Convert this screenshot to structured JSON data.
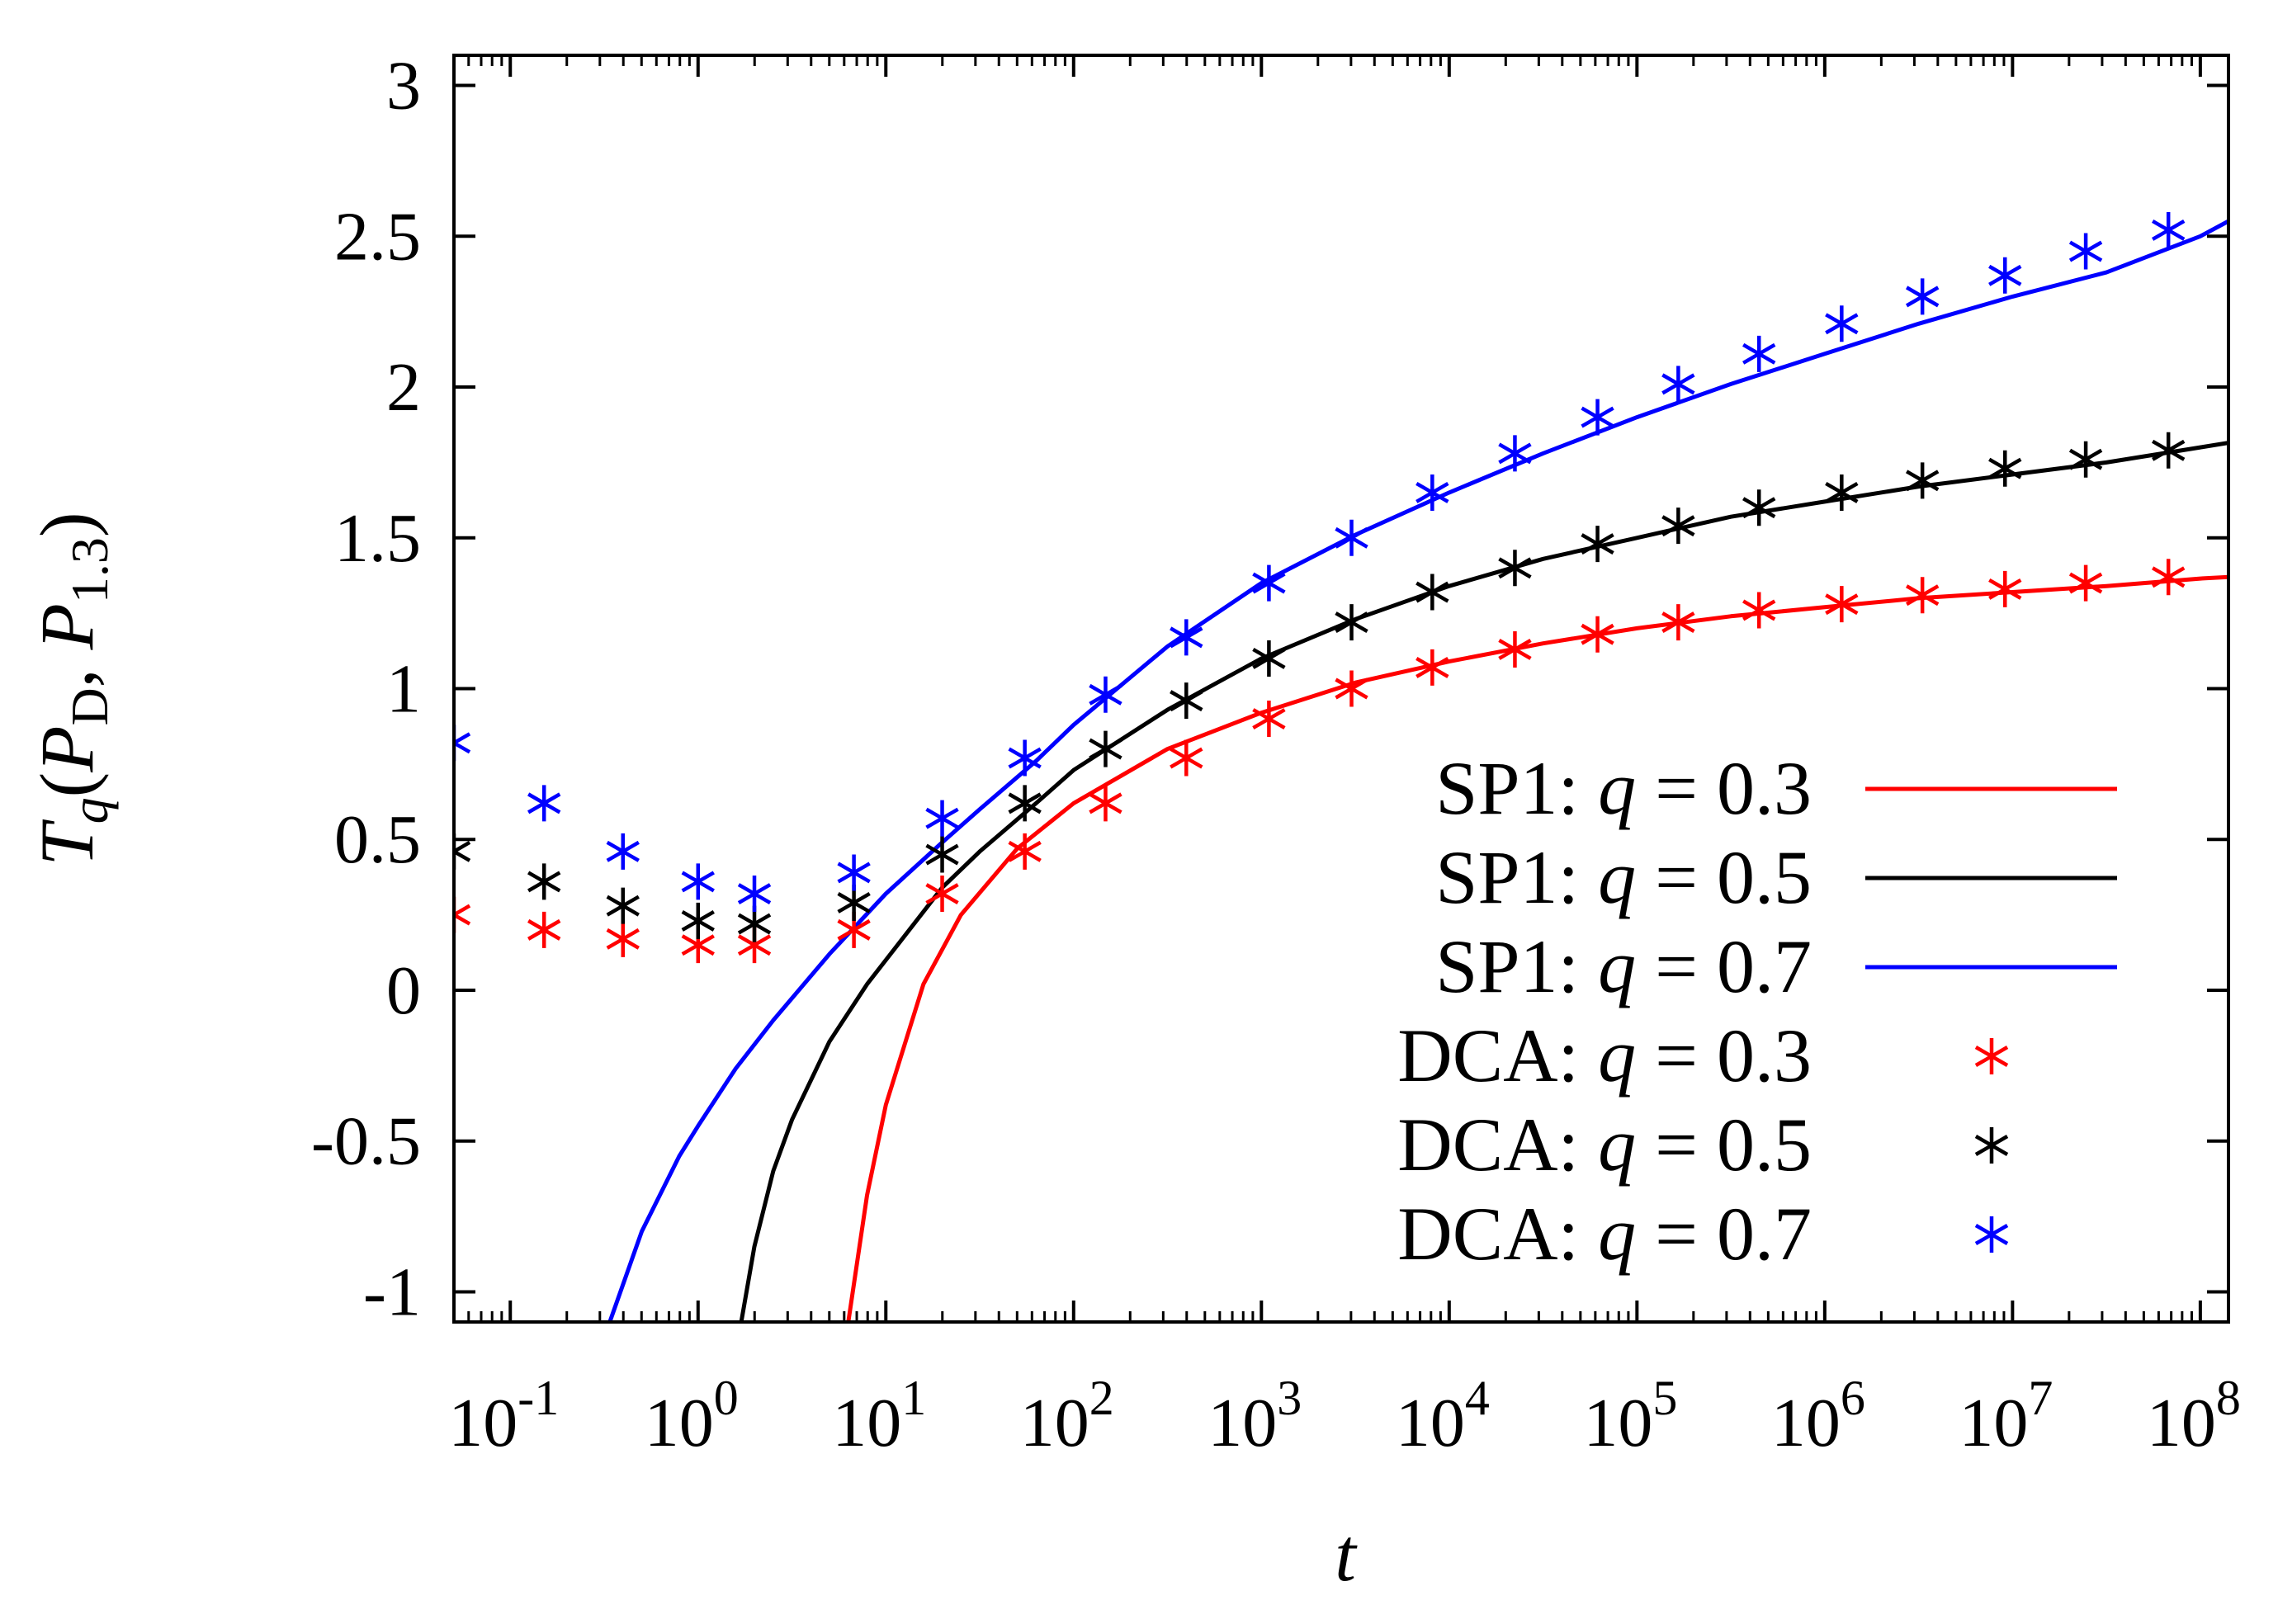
{
  "chart_data": {
    "type": "line",
    "title": "",
    "xlabel": "t",
    "ylabel": {
      "main": "T",
      "main_sub": "q",
      "open": "(",
      "p1": "P",
      "p1_sub": "D",
      "sep": ", ",
      "p2": "P",
      "p2_sub": "1.3",
      "close": ")"
    },
    "xscale": "log",
    "xlim_log10": [
      -1.3,
      8.15
    ],
    "ylim": [
      -1.1,
      3.1
    ],
    "x_ticks": [
      {
        "base": "10",
        "exp": "-1",
        "log10": -1
      },
      {
        "base": "10",
        "exp": "0",
        "log10": 0
      },
      {
        "base": "10",
        "exp": "1",
        "log10": 1
      },
      {
        "base": "10",
        "exp": "2",
        "log10": 2
      },
      {
        "base": "10",
        "exp": "3",
        "log10": 3
      },
      {
        "base": "10",
        "exp": "4",
        "log10": 4
      },
      {
        "base": "10",
        "exp": "5",
        "log10": 5
      },
      {
        "base": "10",
        "exp": "6",
        "log10": 6
      },
      {
        "base": "10",
        "exp": "7",
        "log10": 7
      },
      {
        "base": "10",
        "exp": "8",
        "log10": 8
      }
    ],
    "y_ticks": [
      {
        "label": "-1",
        "value": -1
      },
      {
        "label": "-0.5",
        "value": -0.5
      },
      {
        "label": "0",
        "value": 0
      },
      {
        "label": "0.5",
        "value": 0.5
      },
      {
        "label": "1",
        "value": 1
      },
      {
        "label": "1.5",
        "value": 1.5
      },
      {
        "label": "2",
        "value": 2
      },
      {
        "label": "2.5",
        "value": 2.5
      },
      {
        "label": "3",
        "value": 3
      }
    ],
    "legend_position": "bottom-right",
    "series": [
      {
        "name": "SP1",
        "q": "0.3",
        "legend_prefix": "SP1: ",
        "legend_q": "q",
        "legend_eq": " = 0.3",
        "kind": "line",
        "color": "#ff0000",
        "log10_x": [
          0.8,
          0.9,
          1.0,
          1.2,
          1.4,
          1.7,
          2.0,
          2.5,
          3.0,
          3.5,
          4.0,
          4.5,
          5.0,
          5.5,
          6.0,
          6.5,
          7.0,
          7.5,
          8.0,
          8.15
        ],
        "y": [
          -1.1,
          -0.68,
          -0.38,
          0.02,
          0.25,
          0.47,
          0.62,
          0.8,
          0.92,
          1.02,
          1.09,
          1.15,
          1.2,
          1.24,
          1.27,
          1.3,
          1.32,
          1.34,
          1.365,
          1.37
        ]
      },
      {
        "name": "SP1",
        "q": "0.5",
        "legend_prefix": "SP1: ",
        "legend_q": "q",
        "legend_eq": " = 0.5",
        "kind": "line",
        "color": "#000000",
        "log10_x": [
          0.23,
          0.3,
          0.4,
          0.5,
          0.7,
          0.9,
          1.0,
          1.3,
          1.5,
          1.8,
          2.0,
          2.5,
          3.0,
          3.5,
          4.0,
          4.5,
          5.0,
          5.5,
          6.0,
          6.5,
          7.0,
          7.5,
          8.0,
          8.15
        ],
        "y": [
          -1.1,
          -0.85,
          -0.6,
          -0.43,
          -0.17,
          0.02,
          0.1,
          0.34,
          0.46,
          0.62,
          0.73,
          0.93,
          1.1,
          1.23,
          1.34,
          1.43,
          1.5,
          1.57,
          1.62,
          1.67,
          1.71,
          1.75,
          1.8,
          1.815
        ]
      },
      {
        "name": "SP1",
        "q": "0.7",
        "legend_prefix": "SP1: ",
        "legend_q": "q",
        "legend_eq": " = 0.7",
        "kind": "line",
        "color": "#0000ff",
        "log10_x": [
          -0.47,
          -0.3,
          -0.1,
          0.0,
          0.2,
          0.4,
          0.7,
          1.0,
          1.3,
          1.5,
          1.8,
          2.0,
          2.5,
          3.0,
          3.5,
          4.0,
          4.5,
          5.0,
          5.5,
          6.0,
          6.5,
          7.0,
          7.5,
          8.0,
          8.15
        ],
        "y": [
          -1.1,
          -0.8,
          -0.55,
          -0.45,
          -0.26,
          -0.1,
          0.12,
          0.32,
          0.49,
          0.6,
          0.76,
          0.88,
          1.14,
          1.35,
          1.51,
          1.65,
          1.78,
          1.9,
          2.01,
          2.11,
          2.21,
          2.3,
          2.38,
          2.5,
          2.55
        ]
      },
      {
        "name": "DCA",
        "q": "0.3",
        "legend_prefix": "DCA: ",
        "legend_q": "q",
        "legend_eq": " = 0.3",
        "kind": "scatter",
        "color": "#ff0000",
        "log10_x": [
          -1.3,
          -0.82,
          -0.4,
          0.0,
          0.3,
          0.83,
          1.3,
          1.74,
          2.17,
          2.6,
          3.04,
          3.48,
          3.91,
          4.35,
          4.79,
          5.22,
          5.65,
          6.09,
          6.52,
          6.96,
          7.39,
          7.83
        ],
        "y": [
          0.25,
          0.2,
          0.17,
          0.15,
          0.15,
          0.2,
          0.32,
          0.46,
          0.62,
          0.77,
          0.9,
          1.0,
          1.07,
          1.13,
          1.18,
          1.22,
          1.26,
          1.28,
          1.31,
          1.33,
          1.35,
          1.37
        ]
      },
      {
        "name": "DCA",
        "q": "0.5",
        "legend_prefix": "DCA: ",
        "legend_q": "q",
        "legend_eq": " = 0.5",
        "kind": "scatter",
        "color": "#000000",
        "log10_x": [
          -1.3,
          -0.82,
          -0.4,
          0.0,
          0.3,
          0.83,
          1.3,
          1.74,
          2.17,
          2.6,
          3.04,
          3.48,
          3.91,
          4.35,
          4.79,
          5.22,
          5.65,
          6.09,
          6.52,
          6.96,
          7.39,
          7.83
        ],
        "y": [
          0.46,
          0.36,
          0.28,
          0.23,
          0.22,
          0.29,
          0.45,
          0.62,
          0.8,
          0.96,
          1.1,
          1.22,
          1.32,
          1.4,
          1.48,
          1.54,
          1.6,
          1.65,
          1.69,
          1.73,
          1.76,
          1.79
        ]
      },
      {
        "name": "DCA",
        "q": "0.7",
        "legend_prefix": "DCA: ",
        "legend_q": "q",
        "legend_eq": " = 0.7",
        "kind": "scatter",
        "color": "#0000ff",
        "log10_x": [
          -1.3,
          -0.82,
          -0.4,
          0.0,
          0.3,
          0.83,
          1.3,
          1.74,
          2.17,
          2.6,
          3.04,
          3.48,
          3.91,
          4.35,
          4.79,
          5.22,
          5.65,
          6.09,
          6.52,
          6.96,
          7.39,
          7.83
        ],
        "y": [
          0.82,
          0.62,
          0.46,
          0.36,
          0.32,
          0.39,
          0.57,
          0.77,
          0.98,
          1.17,
          1.35,
          1.5,
          1.65,
          1.78,
          1.9,
          2.01,
          2.11,
          2.21,
          2.3,
          2.37,
          2.45,
          2.52
        ]
      }
    ]
  }
}
